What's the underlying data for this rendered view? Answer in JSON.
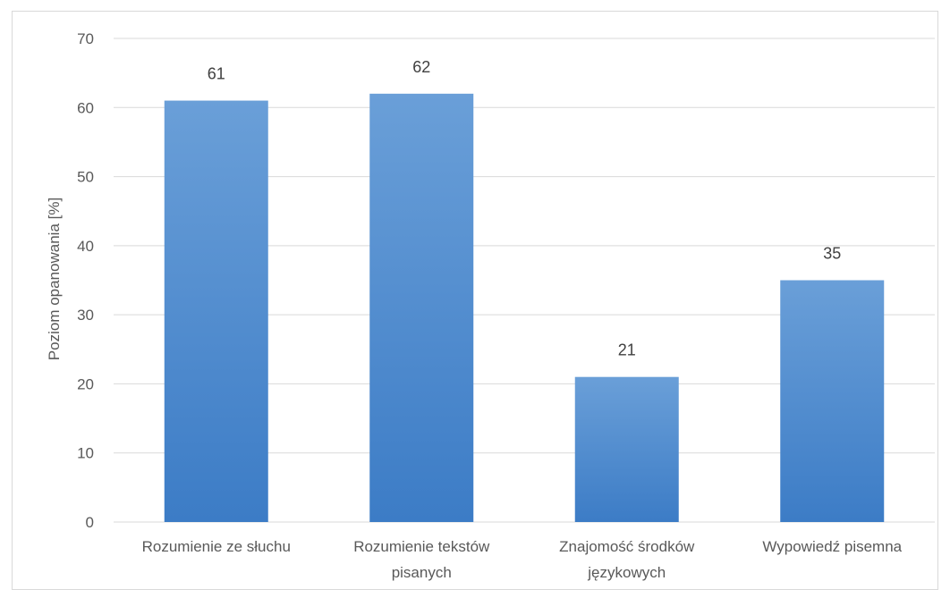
{
  "chart_data": {
    "type": "bar",
    "categories": [
      "Rozumienie ze słuchu",
      "Rozumienie tekstów pisanych",
      "Znajomość środków językowych",
      "Wypowiedź pisemna"
    ],
    "category_lines": [
      [
        "Rozumienie ze słuchu"
      ],
      [
        "Rozumienie tekstów",
        "pisanych"
      ],
      [
        "Znajomość środków",
        "językowych"
      ],
      [
        "Wypowiedź pisemna"
      ]
    ],
    "values": [
      61,
      62,
      21,
      35
    ],
    "data_labels": [
      "61",
      "62",
      "21",
      "35"
    ],
    "title": "",
    "xlabel": "",
    "ylabel": "Poziom opanowania [%]",
    "ylim": [
      0,
      70
    ],
    "yticks": [
      0,
      10,
      20,
      30,
      40,
      50,
      60,
      70
    ],
    "grid": true,
    "legend": "none",
    "colors": {
      "bar_top": "#6a9fd8",
      "bar_bottom": "#3c7cc6",
      "grid": "#d9d9d9",
      "frame": "#d9d9d9"
    }
  }
}
